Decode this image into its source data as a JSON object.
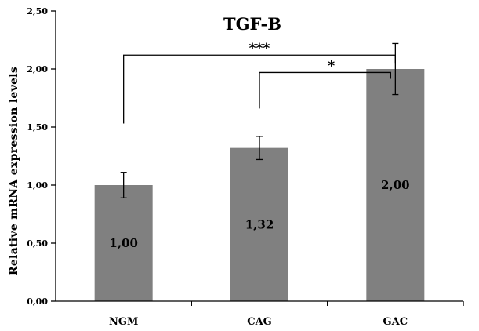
{
  "chart_data": {
    "type": "bar",
    "title": "TGF-B",
    "xlabel": "",
    "ylabel": "Relative  mRNA  expression  levels",
    "categories": [
      "NGM",
      "CAG",
      "GAC"
    ],
    "values": [
      1.0,
      1.32,
      2.0
    ],
    "value_labels": [
      "1,00",
      "1,32",
      "2,00"
    ],
    "error": [
      0.11,
      0.1,
      0.22
    ],
    "ylim": [
      0,
      2.5
    ],
    "yticks": [
      0,
      0.5,
      1.0,
      1.5,
      2.0,
      2.5
    ],
    "ytick_labels": [
      "0,00",
      "0,50",
      "1,00",
      "1,50",
      "2,00",
      "2,50"
    ],
    "grid": false,
    "bar_color": "#808080",
    "significance": [
      {
        "from": 0,
        "to": 2,
        "label": "***"
      },
      {
        "from": 1,
        "to": 2,
        "label": "*"
      }
    ]
  }
}
